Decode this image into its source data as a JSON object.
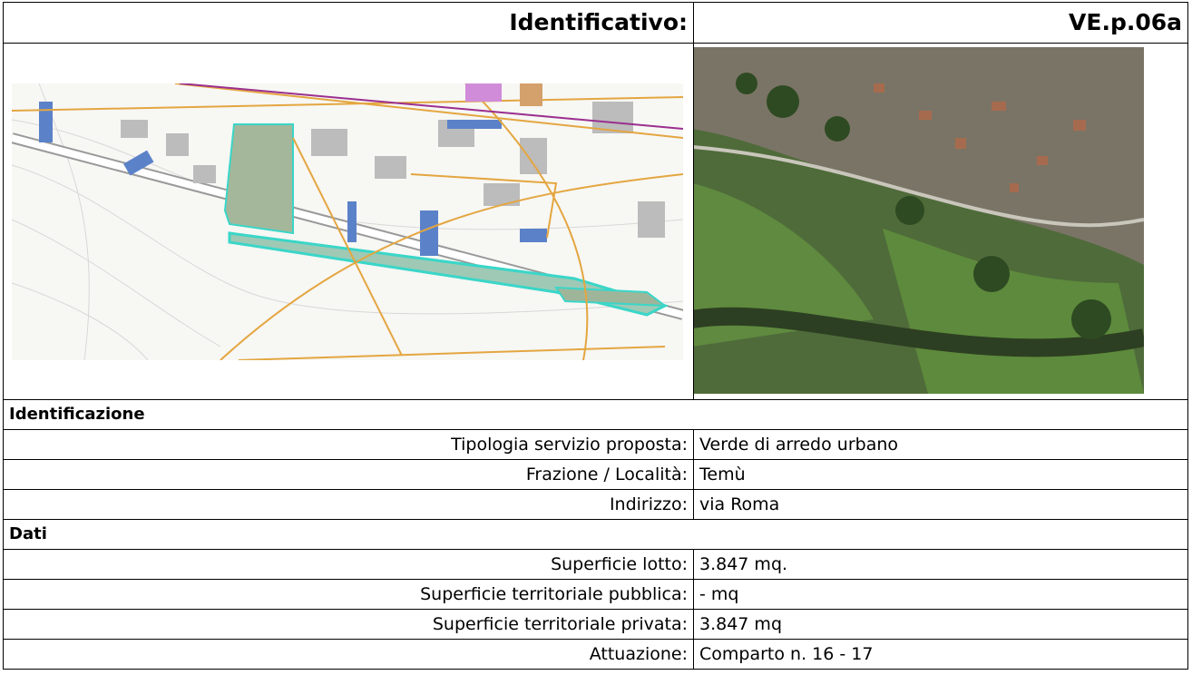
{
  "header": {
    "label": "Identificativo:",
    "value": "VE.p.06a"
  },
  "sections": [
    {
      "title": "Identificazione",
      "rows": [
        [
          "Tipologia servizio proposta:",
          "Verde di arredo urbano"
        ],
        [
          "Frazione / Località:",
          "Temù"
        ],
        [
          "Indirizzo:",
          "via Roma"
        ]
      ]
    },
    {
      "title": "Dati",
      "rows": [
        [
          "Superficie lotto:",
          "3.847 mq."
        ],
        [
          "Superficie territoriale pubblica:",
          "- mq"
        ],
        [
          "Superficie territoriale privata:",
          "3.847 mq"
        ],
        [
          "Attuazione:",
          "Comparto n. 16 - 17"
        ]
      ]
    }
  ]
}
